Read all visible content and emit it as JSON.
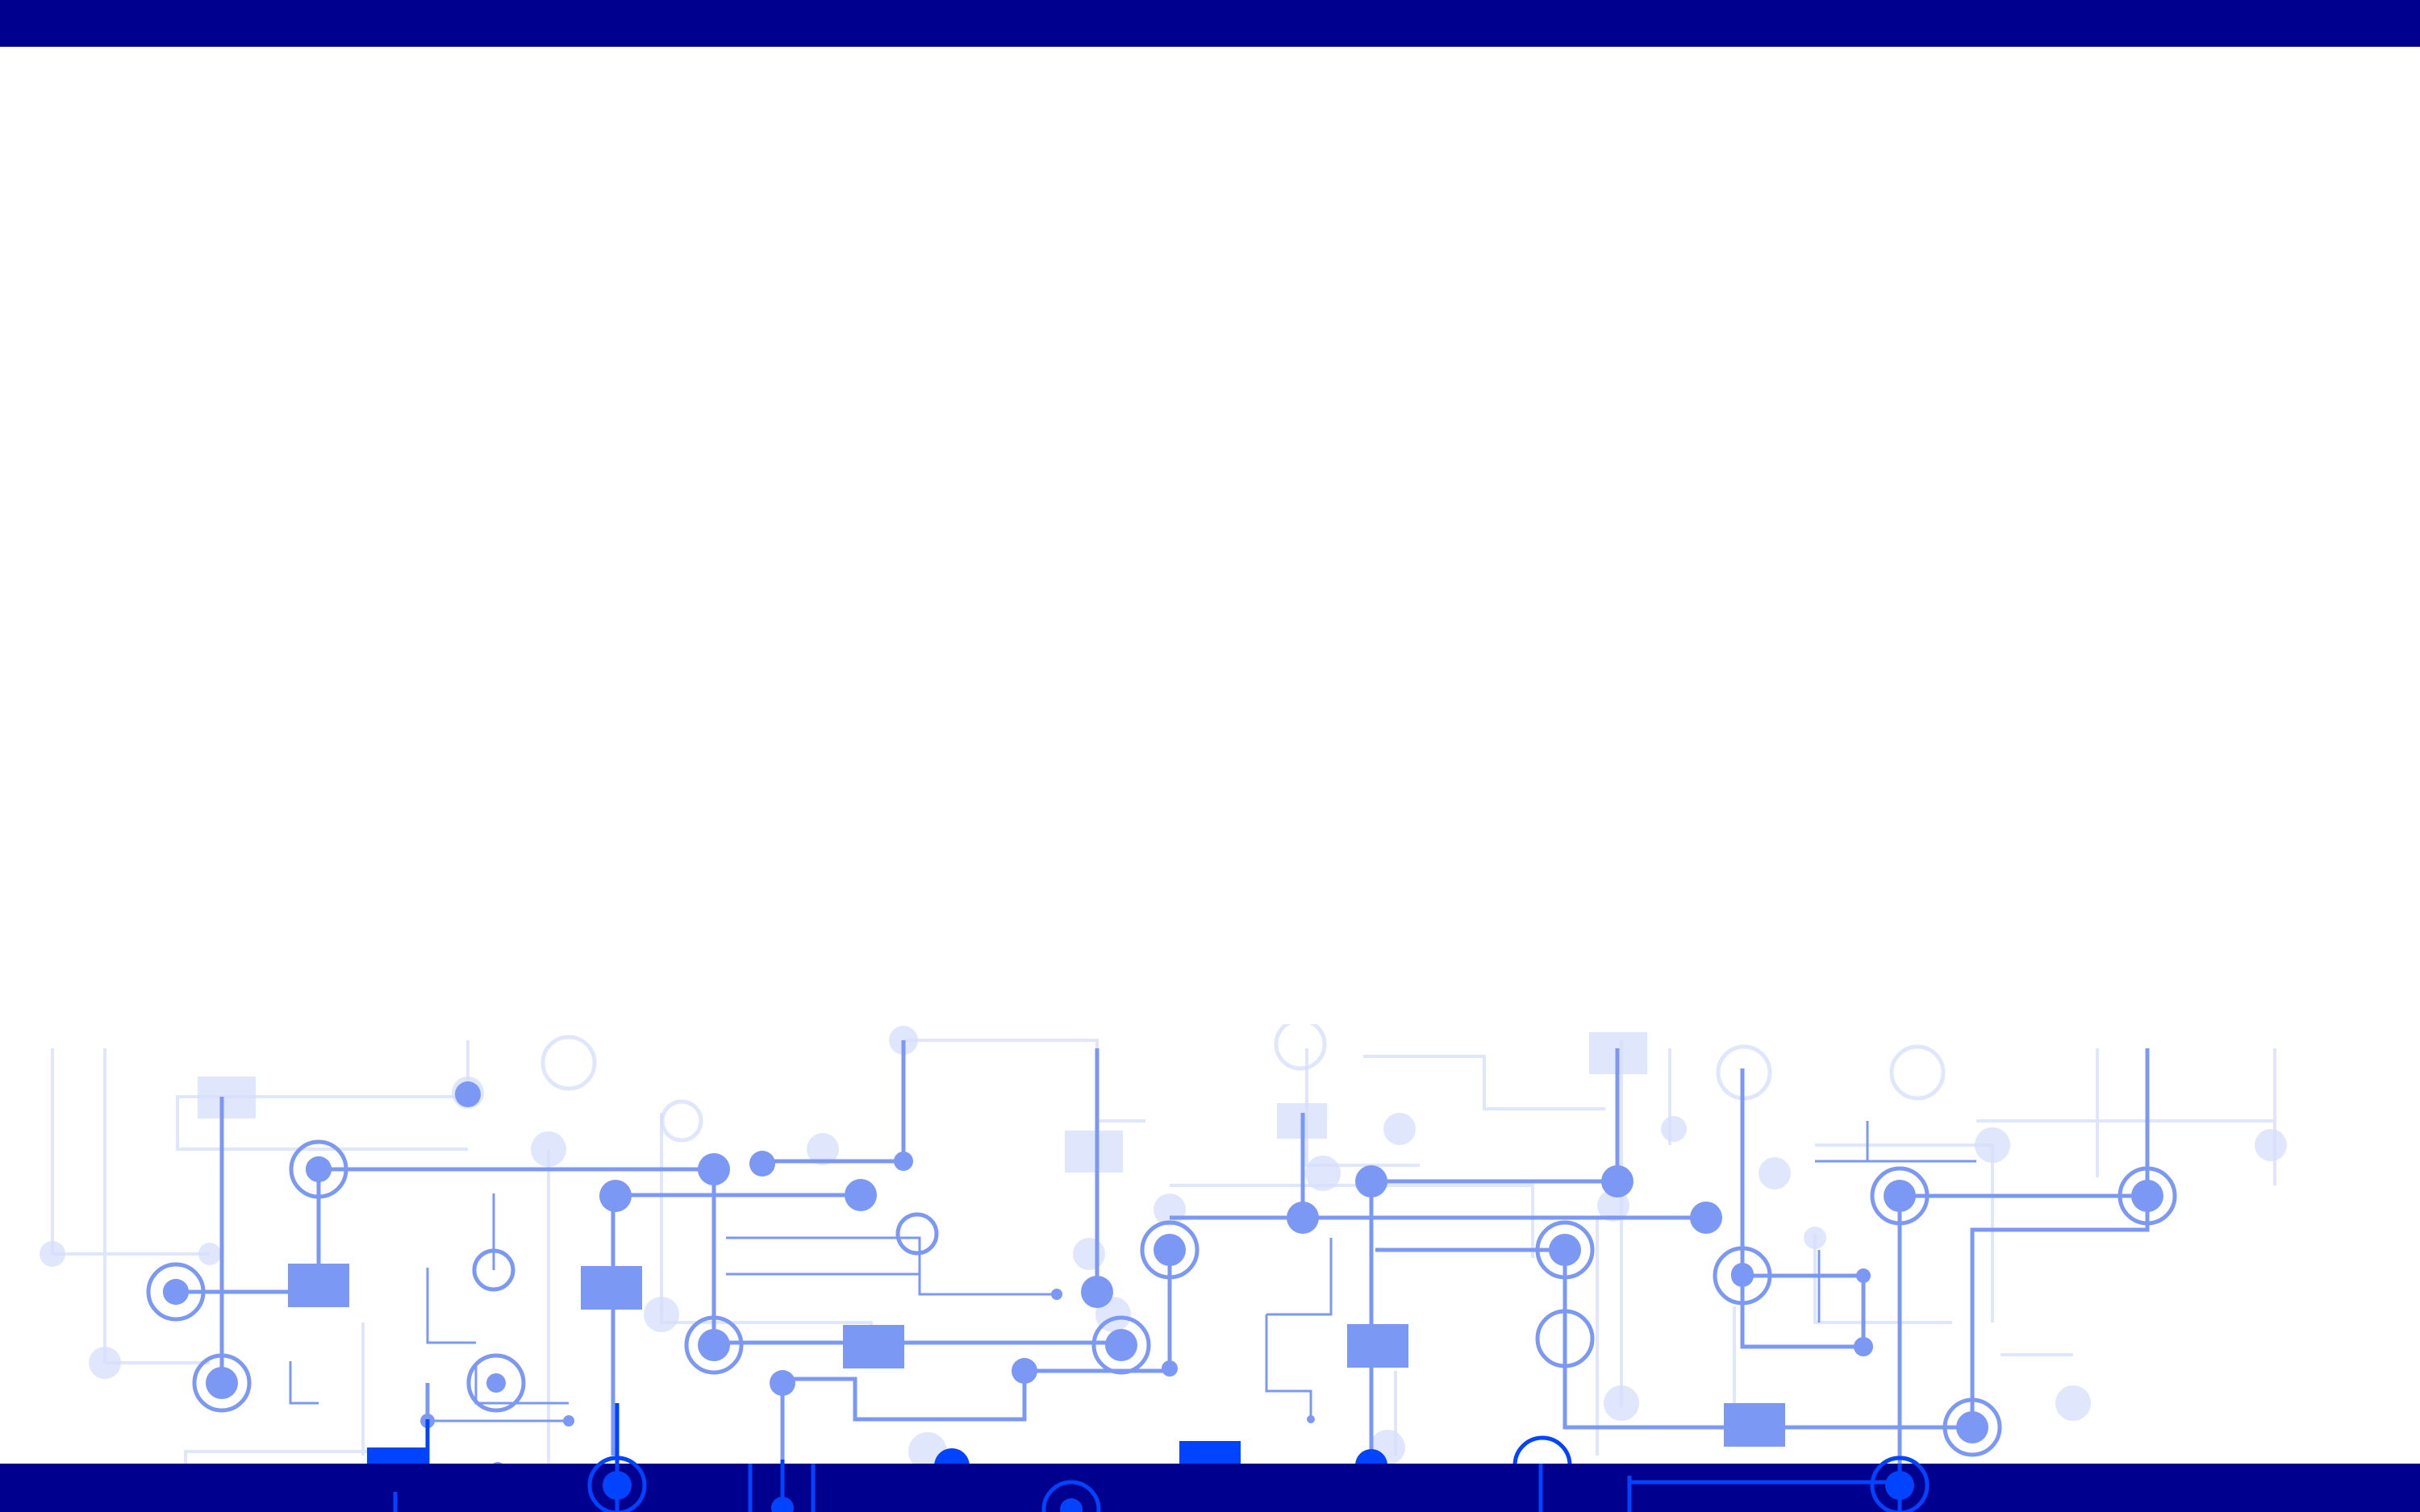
{
  "colors": {
    "bar": "#00008e",
    "circuit_strong": "#0044ff",
    "circuit_mid": "#7b98f5",
    "circuit_light": "#d6defb",
    "background": "#ffffff"
  },
  "decoration": {
    "background_icon": "circuit-board-icon"
  }
}
